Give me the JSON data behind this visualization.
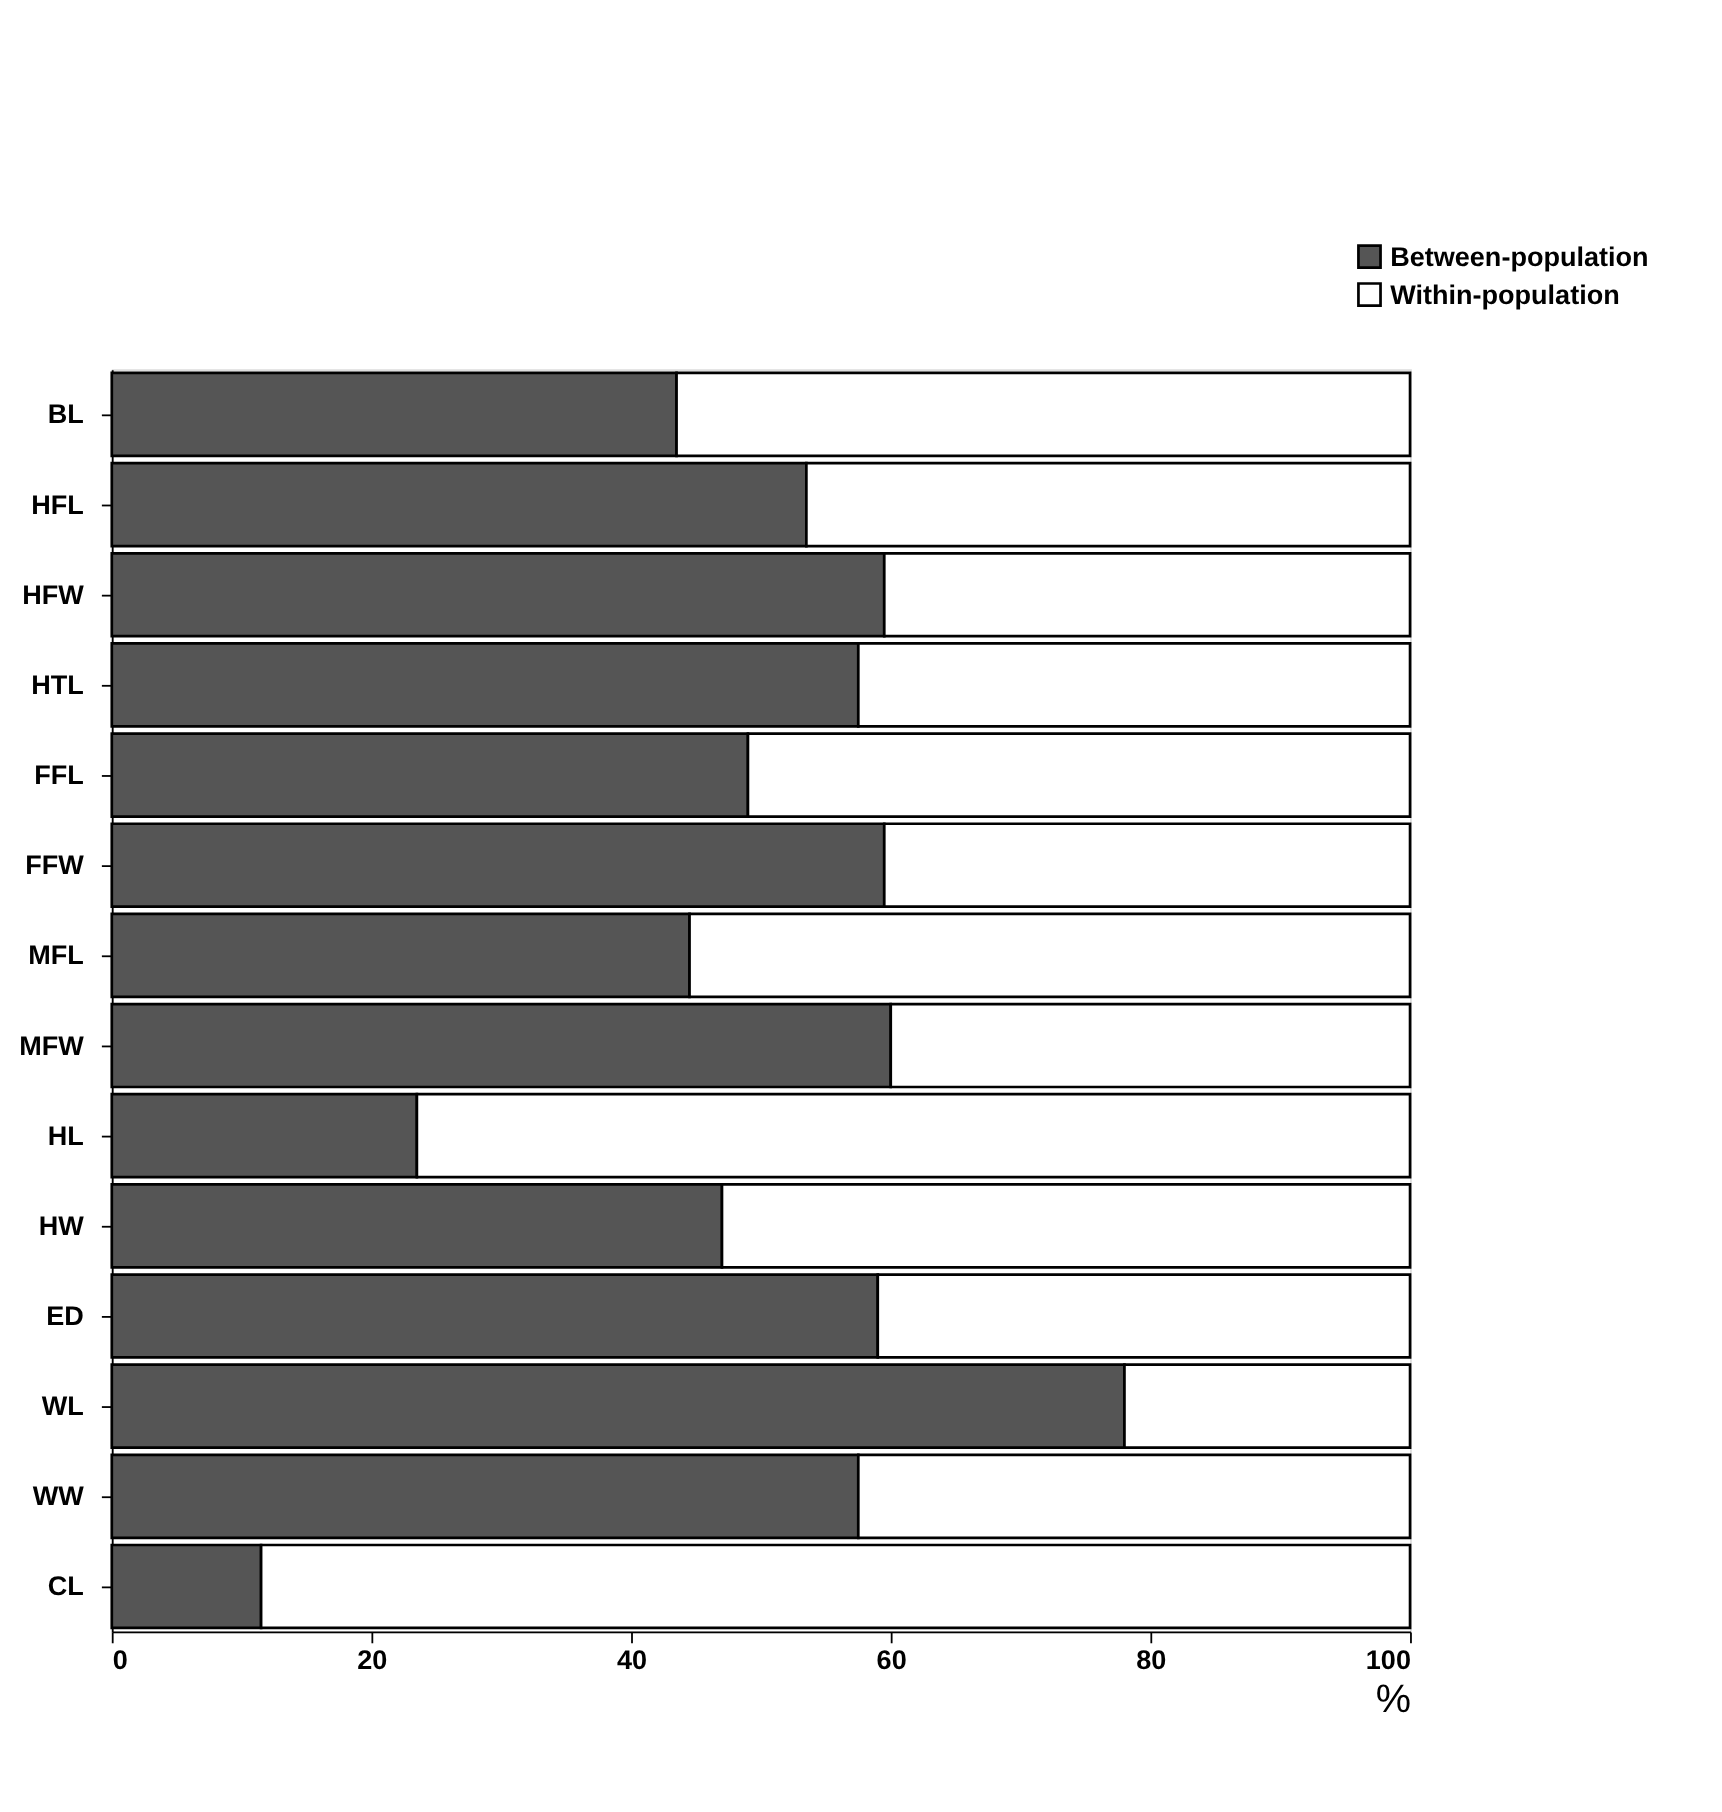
{
  "chart_data": {
    "type": "bar",
    "orientation": "horizontal",
    "stacked": true,
    "categories": [
      "BL",
      "HFL",
      "HFW",
      "HTL",
      "FFL",
      "FFW",
      "MFL",
      "MFW",
      "HL",
      "HW",
      "ED",
      "WL",
      "WW",
      "CL"
    ],
    "series": [
      {
        "name": "Between-population",
        "color": "#555555",
        "values": [
          43.5,
          53.5,
          59.5,
          57.5,
          49,
          59.5,
          44.5,
          60,
          23.5,
          47,
          59,
          78,
          57.5,
          11.5
        ]
      },
      {
        "name": "Within-population",
        "color": "#ffffff",
        "values": [
          56.5,
          46.5,
          40.5,
          42.5,
          51,
          40.5,
          55.5,
          40,
          76.5,
          53,
          41,
          22,
          42.5,
          88.5
        ]
      }
    ],
    "xlabel": "%",
    "xlim": [
      0,
      100
    ],
    "xticks": [
      0,
      20,
      40,
      60,
      80,
      100
    ],
    "grid": false,
    "legend": "top right"
  }
}
